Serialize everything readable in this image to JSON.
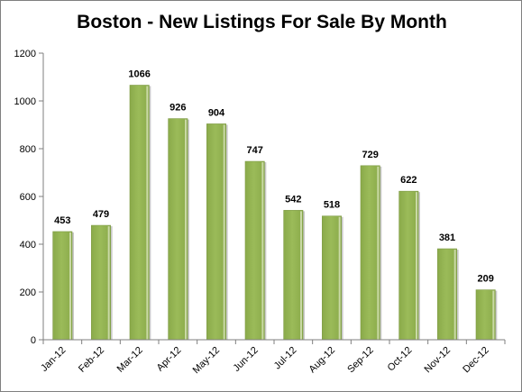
{
  "chart_data": {
    "type": "bar",
    "title": "Boston - New Listings For Sale By Month",
    "categories": [
      "Jan-12",
      "Feb-12",
      "Mar-12",
      "Apr-12",
      "May-12",
      "Jun-12",
      "Jul-12",
      "Aug-12",
      "Sep-12",
      "Oct-12",
      "Nov-12",
      "Dec-12"
    ],
    "values": [
      453,
      479,
      1066,
      926,
      904,
      747,
      542,
      518,
      729,
      622,
      381,
      209
    ],
    "ylim": [
      0,
      1200
    ],
    "yticks": [
      0,
      200,
      400,
      600,
      800,
      1000,
      1200
    ],
    "xlabel": "",
    "ylabel": "",
    "grid": false,
    "legend": "none",
    "colors": {
      "bar": "#9bbb59",
      "bar_edge": "#7d9a44",
      "bar_highlight": "#d8e4bc",
      "axis": "#7f7f7f"
    }
  }
}
